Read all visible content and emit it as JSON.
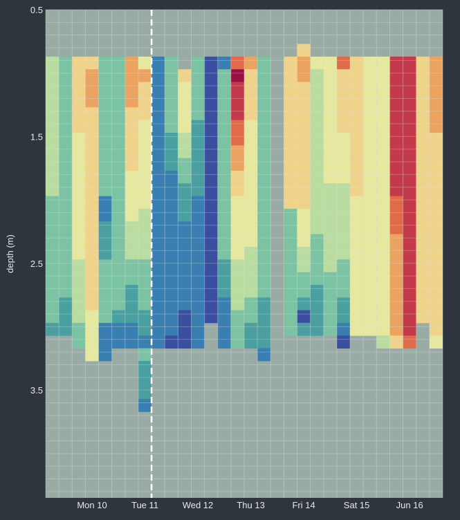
{
  "chart_data": {
    "type": "heatmap",
    "title": "",
    "xlabel": "",
    "ylabel": "depth (m)",
    "ylim": [
      0.5,
      4.35
    ],
    "y_reversed": true,
    "y_ticks": [
      "0.5",
      "1.5",
      "2.5",
      "3.5"
    ],
    "x_ticks": [
      "Mon 10",
      "Tue 11",
      "Wed 12",
      "Thu 13",
      "Fri 14",
      "Sat 15",
      "Jun 16"
    ],
    "grid": true,
    "background_color": "#9aaba5",
    "panel_color": "#2f353c",
    "marker_line": {
      "style": "dashed",
      "color": "#ffffff",
      "position": "Tue 11"
    },
    "palette": [
      "#3b4fa0",
      "#3a7fb2",
      "#4aa0a0",
      "#7cc3a3",
      "#b9dca0",
      "#e6e8a0",
      "#f0d38a",
      "#eaa360",
      "#e06a4a",
      "#c43a4a",
      "#9a0f45"
    ],
    "value_scale": "0 (low) to 10 (high), mapped to palette",
    "depth_step_m": 0.1,
    "profiles": [
      {
        "top": 0.87,
        "bottom": 3.05,
        "values": [
          4,
          4,
          4,
          4,
          4,
          4,
          4,
          4,
          4,
          4,
          4,
          3,
          3,
          3,
          3,
          3,
          3,
          3,
          3,
          3,
          3,
          2
        ]
      },
      {
        "top": 0.87,
        "bottom": 3.05,
        "values": [
          3,
          3,
          3,
          3,
          3,
          3,
          3,
          3,
          3,
          3,
          3,
          3,
          3,
          3,
          3,
          3,
          3,
          3,
          3,
          2,
          2,
          2
        ]
      },
      {
        "top": 0.87,
        "bottom": 3.15,
        "values": [
          6,
          6,
          6,
          6,
          6,
          6,
          5,
          5,
          5,
          5,
          5,
          5,
          5,
          5,
          5,
          5,
          4,
          4,
          4,
          4,
          4,
          3,
          3
        ]
      },
      {
        "top": 0.87,
        "bottom": 3.25,
        "values": [
          6,
          7,
          7,
          7,
          6,
          6,
          6,
          6,
          6,
          6,
          6,
          6,
          6,
          6,
          6,
          6,
          6,
          6,
          6,
          6,
          5,
          5,
          5,
          5
        ]
      },
      {
        "top": 0.87,
        "bottom": 3.25,
        "values": [
          3,
          3,
          3,
          3,
          3,
          3,
          3,
          3,
          3,
          3,
          3,
          1,
          1,
          2,
          2,
          2,
          3,
          3,
          3,
          3,
          3,
          1,
          1,
          1
        ]
      },
      {
        "top": 0.87,
        "bottom": 3.15,
        "values": [
          3,
          3,
          3,
          3,
          3,
          3,
          3,
          3,
          3,
          3,
          3,
          3,
          3,
          3,
          3,
          3,
          3,
          3,
          3,
          3,
          2,
          1,
          1
        ]
      },
      {
        "top": 0.87,
        "bottom": 3.15,
        "values": [
          7,
          7,
          7,
          7,
          6,
          6,
          6,
          6,
          6,
          5,
          5,
          5,
          5,
          4,
          4,
          4,
          3,
          3,
          2,
          2,
          2,
          1,
          1
        ]
      },
      {
        "top": 0.87,
        "bottom": 3.55,
        "values": [
          5,
          7,
          6,
          6,
          6,
          5,
          5,
          5,
          5,
          5,
          5,
          5,
          4,
          4,
          4,
          4,
          3,
          3,
          3,
          3,
          2,
          2,
          1,
          3,
          2,
          2,
          2,
          1
        ]
      },
      {
        "top": 0.87,
        "bottom": 3.15,
        "values": [
          1,
          1,
          1,
          1,
          1,
          1,
          1,
          1,
          1,
          1,
          1,
          1,
          1,
          1,
          1,
          1,
          1,
          1,
          1,
          1,
          1,
          1,
          1
        ]
      },
      {
        "top": 0.87,
        "bottom": 3.15,
        "values": [
          3,
          3,
          3,
          3,
          3,
          3,
          2,
          2,
          2,
          1,
          1,
          1,
          1,
          1,
          1,
          1,
          1,
          1,
          1,
          1,
          1,
          1,
          0
        ]
      },
      {
        "top": 0.97,
        "bottom": 3.15,
        "values": [
          6,
          5,
          5,
          5,
          5,
          4,
          4,
          3,
          3,
          2,
          2,
          2,
          1,
          1,
          1,
          1,
          1,
          1,
          1,
          0,
          0,
          0
        ]
      },
      {
        "top": 0.87,
        "bottom": 3.15,
        "values": [
          3,
          3,
          3,
          3,
          3,
          2,
          2,
          2,
          2,
          2,
          2,
          1,
          1,
          1,
          1,
          1,
          1,
          1,
          1,
          1,
          1,
          1,
          1
        ]
      },
      {
        "top": 0.87,
        "bottom": 2.95,
        "values": [
          0,
          0,
          0,
          0,
          0,
          0,
          0,
          0,
          0,
          0,
          0,
          0,
          0,
          0,
          0,
          0,
          0,
          0,
          0,
          0,
          0
        ]
      },
      {
        "top": 0.87,
        "bottom": 3.15,
        "values": [
          1,
          3,
          3,
          3,
          3,
          3,
          3,
          3,
          3,
          3,
          3,
          3,
          3,
          3,
          3,
          3,
          2,
          2,
          2,
          1,
          1,
          1,
          1
        ]
      },
      {
        "top": 0.87,
        "bottom": 3.15,
        "values": [
          8,
          10,
          9,
          9,
          9,
          8,
          8,
          7,
          7,
          6,
          6,
          5,
          5,
          5,
          5,
          5,
          4,
          4,
          4,
          4,
          3,
          3,
          3
        ]
      },
      {
        "top": 0.87,
        "bottom": 3.15,
        "values": [
          7,
          6,
          6,
          6,
          6,
          5,
          5,
          5,
          5,
          5,
          5,
          5,
          5,
          5,
          5,
          4,
          4,
          4,
          4,
          3,
          3,
          2,
          2
        ]
      },
      {
        "top": 0.87,
        "bottom": 3.25,
        "values": [
          3,
          3,
          3,
          3,
          3,
          3,
          3,
          3,
          3,
          3,
          3,
          3,
          3,
          3,
          3,
          3,
          3,
          3,
          3,
          2,
          2,
          2,
          2,
          1
        ]
      },
      {
        "top": null,
        "bottom": null,
        "values": []
      },
      {
        "top": 0.87,
        "bottom": 3.05,
        "values": [
          6,
          6,
          6,
          6,
          6,
          6,
          6,
          6,
          6,
          6,
          6,
          6,
          3,
          3,
          3,
          3,
          3,
          3,
          3,
          3,
          3,
          3
        ]
      },
      {
        "top": 0.77,
        "bottom": 3.05,
        "values": [
          6,
          7,
          7,
          6,
          6,
          6,
          6,
          6,
          6,
          6,
          6,
          6,
          6,
          5,
          5,
          5,
          4,
          4,
          3,
          3,
          2,
          0,
          2
        ]
      },
      {
        "top": 0.87,
        "bottom": 3.05,
        "values": [
          5,
          4,
          4,
          4,
          4,
          4,
          4,
          4,
          4,
          4,
          4,
          4,
          4,
          4,
          3,
          3,
          3,
          3,
          2,
          2,
          2,
          2
        ]
      },
      {
        "top": 0.87,
        "bottom": 3.05,
        "values": [
          5,
          5,
          5,
          5,
          5,
          5,
          5,
          5,
          5,
          5,
          4,
          4,
          4,
          4,
          4,
          4,
          4,
          3,
          3,
          3,
          3,
          3
        ]
      },
      {
        "top": 0.87,
        "bottom": 3.15,
        "values": [
          8,
          6,
          6,
          6,
          6,
          6,
          5,
          5,
          5,
          5,
          4,
          4,
          4,
          4,
          4,
          4,
          3,
          3,
          3,
          2,
          2,
          1,
          0
        ]
      },
      {
        "top": 0.87,
        "bottom": 3.05,
        "values": [
          6,
          6,
          6,
          6,
          6,
          6,
          6,
          6,
          6,
          6,
          6,
          5,
          5,
          5,
          5,
          5,
          5,
          5,
          5,
          5,
          5,
          5
        ]
      },
      {
        "top": 0.87,
        "bottom": 3.05,
        "values": [
          5,
          5,
          5,
          5,
          5,
          5,
          5,
          5,
          5,
          5,
          5,
          5,
          5,
          5,
          5,
          5,
          5,
          5,
          5,
          5,
          5,
          5
        ]
      },
      {
        "top": 0.87,
        "bottom": 3.15,
        "values": [
          5,
          5,
          5,
          5,
          5,
          5,
          5,
          5,
          5,
          5,
          5,
          5,
          5,
          5,
          5,
          5,
          5,
          5,
          5,
          5,
          5,
          5,
          4
        ]
      },
      {
        "top": 0.87,
        "bottom": 3.15,
        "values": [
          9,
          9,
          9,
          9,
          9,
          9,
          9,
          9,
          9,
          9,
          9,
          8,
          8,
          8,
          7,
          7,
          7,
          7,
          7,
          7,
          7,
          7,
          6
        ]
      },
      {
        "top": 0.87,
        "bottom": 3.15,
        "values": [
          9,
          9,
          9,
          9,
          9,
          9,
          9,
          9,
          9,
          9,
          9,
          9,
          9,
          9,
          9,
          9,
          9,
          9,
          9,
          9,
          9,
          9,
          8
        ]
      },
      {
        "top": 0.87,
        "bottom": 2.95,
        "values": [
          6,
          6,
          6,
          6,
          6,
          6,
          6,
          6,
          6,
          6,
          6,
          6,
          6,
          6,
          6,
          6,
          6,
          6,
          6,
          6,
          6
        ]
      },
      {
        "top": 0.87,
        "bottom": 3.15,
        "values": [
          7,
          7,
          7,
          7,
          7,
          7,
          6,
          6,
          6,
          6,
          6,
          6,
          6,
          6,
          6,
          6,
          6,
          6,
          6,
          6,
          6,
          6,
          5
        ]
      }
    ]
  }
}
